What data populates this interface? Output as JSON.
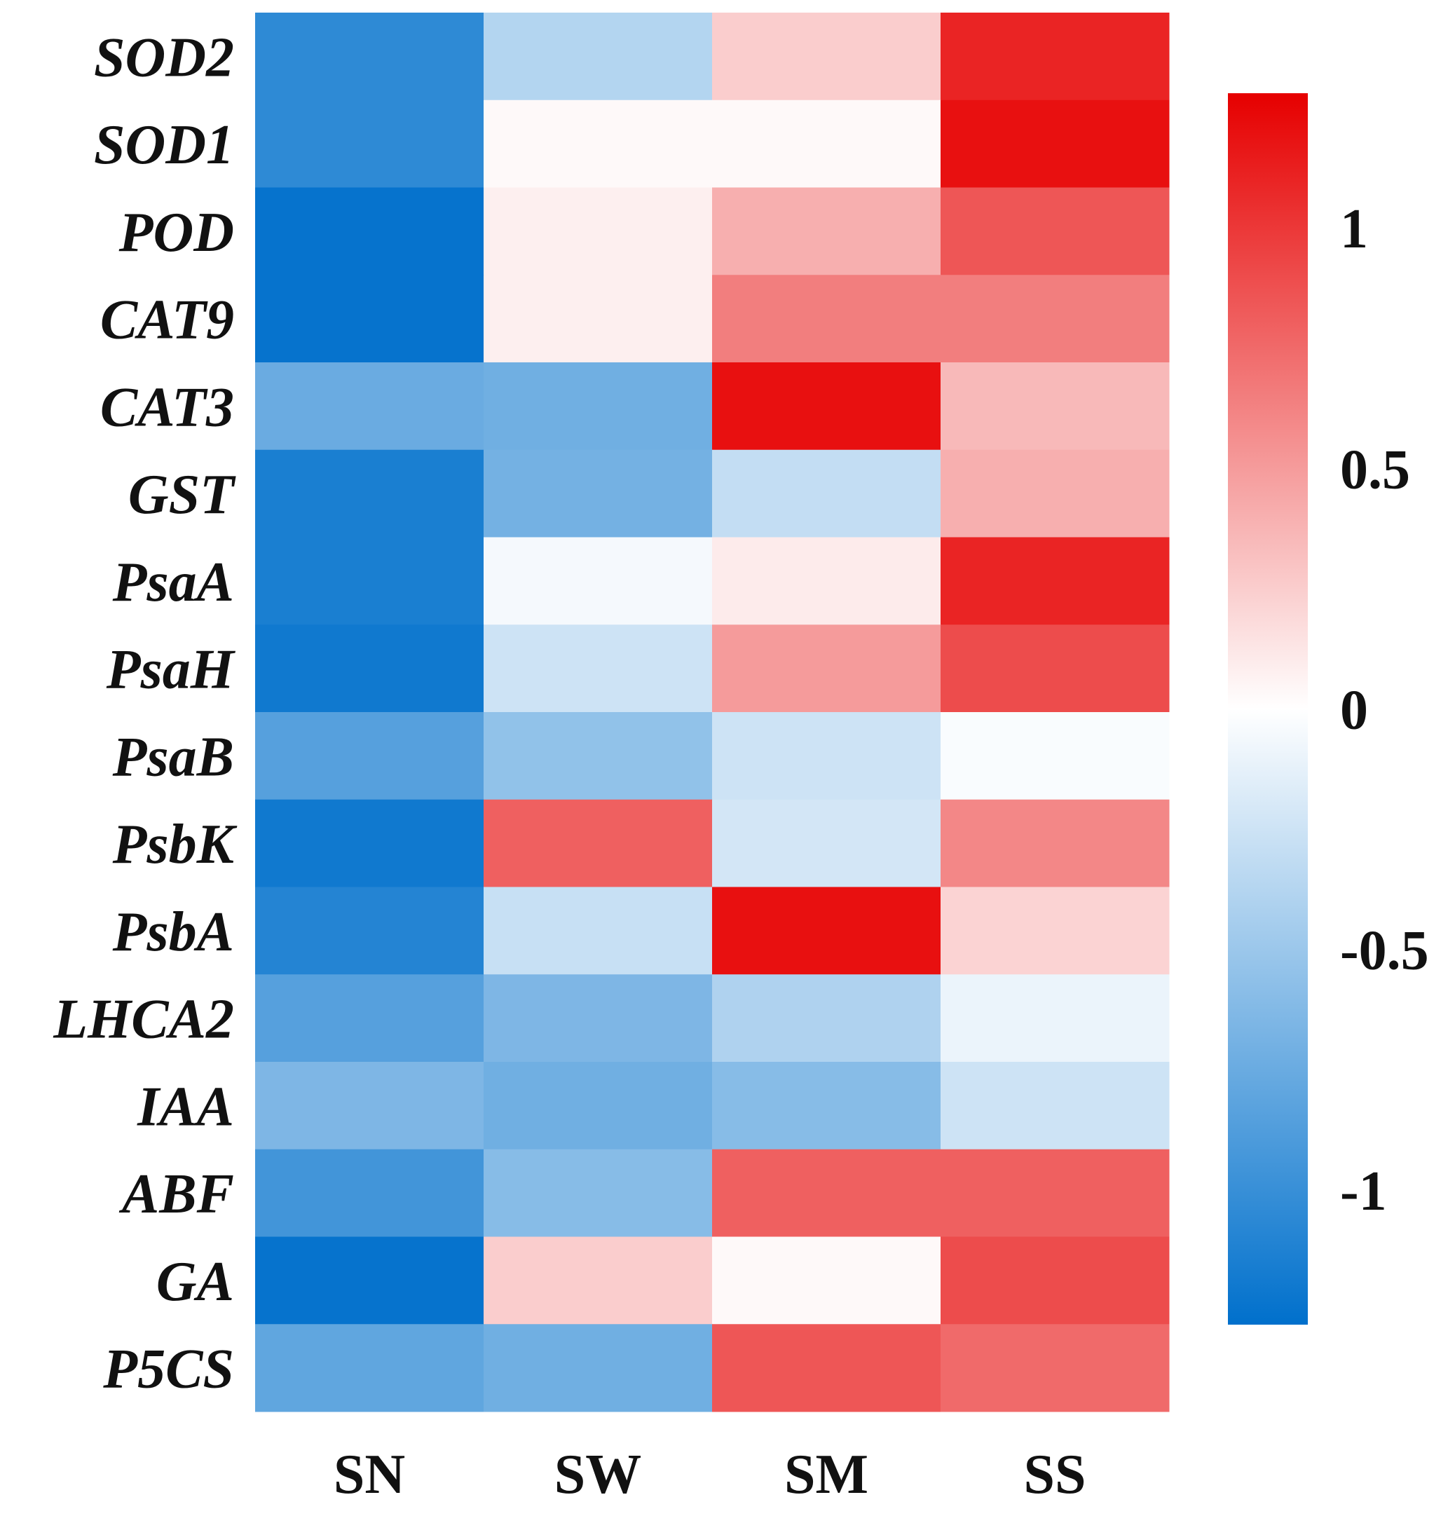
{
  "chart_data": {
    "type": "heatmap",
    "title": "",
    "rows": [
      "SOD2",
      "SOD1",
      "POD",
      "CAT9",
      "CAT3",
      "GST",
      "PsaA",
      "PsaH",
      "PsaB",
      "PsbK",
      "PsbA",
      "LHCA2",
      "IAA",
      "ABF",
      "GA",
      "P5CS"
    ],
    "columns": [
      "SN",
      "SW",
      "SM",
      "SS"
    ],
    "values": [
      [
        -1.05,
        -0.38,
        0.25,
        1.1
      ],
      [
        -1.05,
        0.03,
        0.03,
        1.2
      ],
      [
        -1.25,
        0.08,
        0.4,
        0.85
      ],
      [
        -1.25,
        0.08,
        0.65,
        0.65
      ],
      [
        -0.75,
        -0.72,
        1.2,
        0.35
      ],
      [
        -1.15,
        -0.7,
        -0.3,
        0.4
      ],
      [
        -1.15,
        -0.05,
        0.1,
        1.1
      ],
      [
        -1.2,
        -0.25,
        0.5,
        0.9
      ],
      [
        -0.85,
        -0.55,
        -0.25,
        -0.03
      ],
      [
        -1.2,
        0.8,
        -0.22,
        0.6
      ],
      [
        -1.1,
        -0.28,
        1.2,
        0.22
      ],
      [
        -0.85,
        -0.65,
        -0.4,
        -0.1
      ],
      [
        -0.65,
        -0.72,
        -0.6,
        -0.25
      ],
      [
        -0.95,
        -0.6,
        0.8,
        0.8
      ],
      [
        -1.25,
        0.25,
        0.03,
        0.9
      ],
      [
        -0.8,
        -0.72,
        0.85,
        0.75
      ]
    ],
    "colorbar": {
      "min": -1.28,
      "max": 1.28,
      "ticks": [
        1,
        0.5,
        0,
        -0.5,
        -1
      ],
      "tick_labels": [
        "1",
        "0.5",
        "0",
        "-0.5",
        "-1"
      ],
      "low_color": "#0070cc",
      "mid_color": "#ffffff",
      "high_color": "#e60000"
    }
  }
}
